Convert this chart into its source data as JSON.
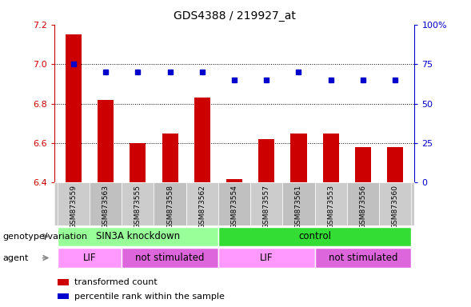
{
  "title": "GDS4388 / 219927_at",
  "samples": [
    "GSM873559",
    "GSM873563",
    "GSM873555",
    "GSM873558",
    "GSM873562",
    "GSM873554",
    "GSM873557",
    "GSM873561",
    "GSM873553",
    "GSM873556",
    "GSM873560"
  ],
  "bar_values": [
    7.15,
    6.82,
    6.6,
    6.65,
    6.83,
    6.42,
    6.62,
    6.65,
    6.65,
    6.58,
    6.58
  ],
  "percentile_values": [
    75,
    70,
    70,
    70,
    70,
    65,
    65,
    70,
    65,
    65,
    65
  ],
  "ylim_left": [
    6.4,
    7.2
  ],
  "ylim_right": [
    0,
    100
  ],
  "yticks_left": [
    6.4,
    6.6,
    6.8,
    7.0,
    7.2
  ],
  "yticks_right": [
    0,
    25,
    50,
    75,
    100
  ],
  "bar_color": "#cc0000",
  "dot_color": "#0000cc",
  "groups": [
    {
      "label": "SIN3A knockdown",
      "start": 0,
      "end": 5,
      "color": "#99ff99"
    },
    {
      "label": "control",
      "start": 5,
      "end": 11,
      "color": "#33dd33"
    }
  ],
  "agents": [
    {
      "label": "LIF",
      "start": 0,
      "end": 2,
      "color": "#ff99ff"
    },
    {
      "label": "not stimulated",
      "start": 2,
      "end": 5,
      "color": "#dd66dd"
    },
    {
      "label": "LIF",
      "start": 5,
      "end": 8,
      "color": "#ff99ff"
    },
    {
      "label": "not stimulated",
      "start": 8,
      "end": 11,
      "color": "#dd66dd"
    }
  ],
  "label_genotype": "genotype/variation",
  "label_agent": "agent",
  "legend_red": "transformed count",
  "legend_blue": "percentile rank within the sample",
  "tick_label_color_left": "#cc0000",
  "tick_label_color_right": "#0000cc",
  "bar_baseline": 6.4,
  "sample_bg_color": "#cccccc",
  "grid_yticks": [
    6.6,
    6.8,
    7.0
  ]
}
